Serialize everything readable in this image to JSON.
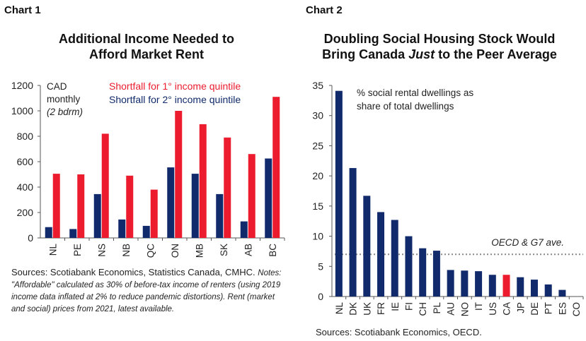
{
  "chart_data": [
    {
      "label": "Chart 1",
      "type": "bar",
      "title_lines": [
        "Additional Income Needed to",
        "Afford Market Rent"
      ],
      "ylabel_lines": [
        "CAD",
        "monthly",
        "(2 bdrm)"
      ],
      "categories": [
        "NL",
        "PE",
        "NS",
        "NB",
        "QC",
        "ON",
        "MB",
        "SK",
        "AB",
        "BC"
      ],
      "series": [
        {
          "name": "Shortfall for 1° income quintile",
          "color": "#ec1c2e",
          "values": [
            505,
            500,
            820,
            490,
            380,
            1000,
            895,
            790,
            660,
            1110
          ]
        },
        {
          "name": "Shortfall for 2° income quintile",
          "color": "#102a6b",
          "values": [
            85,
            70,
            345,
            145,
            95,
            555,
            505,
            345,
            130,
            625
          ]
        }
      ],
      "ylim": [
        0,
        1200
      ],
      "yticks": [
        0,
        200,
        400,
        600,
        800,
        1000,
        1200
      ],
      "legend_position": "top-right",
      "grid": false,
      "sources": "Sources: Scotiabank Economics, Statistics Canada, CMHC.",
      "notes": "Notes: \"Affordable\" calculated as 30% of before-tax income of renters (using 2019 income data inflated at 2% to reduce pandemic distortions). Rent (market and social) prices from 2021, latest available."
    },
    {
      "label": "Chart 2",
      "type": "bar",
      "title_line1": "Doubling Social Housing Stock Would",
      "title_line2_pre": "Bring Canada ",
      "title_line2_em": "Just",
      "title_line2_post": " to the Peer Average",
      "annotation_lines": [
        "% social rental dwellings as",
        "share of total dwellings"
      ],
      "categories": [
        "NL",
        "DK",
        "UK",
        "FR",
        "IE",
        "FI",
        "CH",
        "PL",
        "AU",
        "NO",
        "IT",
        "US",
        "CA",
        "JP",
        "DE",
        "PT",
        "ES",
        "CO"
      ],
      "values": [
        34.1,
        21.3,
        16.7,
        14.0,
        12.7,
        10.0,
        8.0,
        7.6,
        4.4,
        4.3,
        4.2,
        3.6,
        3.6,
        3.2,
        2.8,
        2.0,
        1.1,
        0.0
      ],
      "highlight": "CA",
      "bar_color": "#102a6b",
      "highlight_color": "#ec1c2e",
      "reference_line": {
        "label": "OECD & G7 ave.",
        "value": 7.0
      },
      "ylim": [
        0,
        35
      ],
      "yticks": [
        0,
        5,
        10,
        15,
        20,
        25,
        30,
        35
      ],
      "grid": false,
      "sources": "Sources: Scotiabank Economics, OECD."
    }
  ]
}
